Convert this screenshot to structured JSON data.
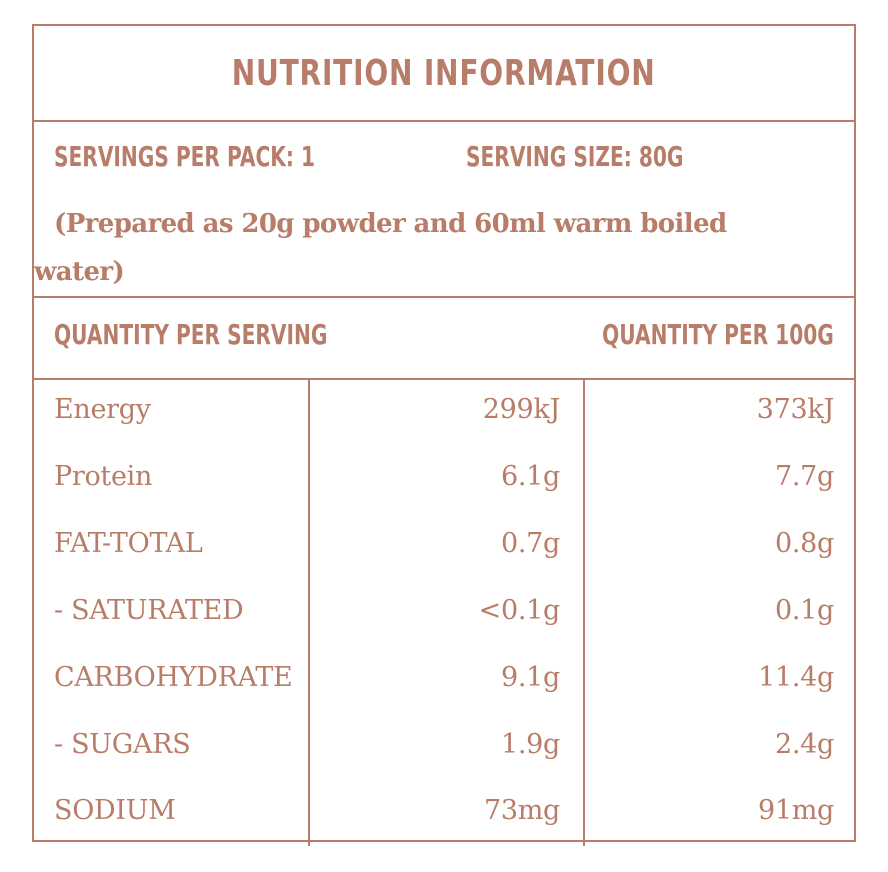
{
  "title": "NUTRITION INFORMATION",
  "servings": {
    "per_pack": "SERVINGS PER PACK: 1",
    "serving_size": "SERVING SIZE: 80G",
    "note": "(Prepared as 20g powder and 60ml warm boiled water)"
  },
  "headers": {
    "per_serving": "QUANTITY PER SERVING",
    "per_100g": "QUANTITY PER 100G"
  },
  "colors": {
    "accent": "#b87d69"
  },
  "rows": [
    {
      "name": "Energy",
      "serving": "299kJ",
      "per100": "373kJ"
    },
    {
      "name": "Protein",
      "serving": "6.1g",
      "per100": "7.7g"
    },
    {
      "name": "FAT-TOTAL",
      "serving": "0.7g",
      "per100": "0.8g"
    },
    {
      "name": "- SATURATED",
      "serving": "<0.1g",
      "per100": "0.1g"
    },
    {
      "name": "CARBOHYDRATE",
      "serving": "9.1g",
      "per100": "11.4g"
    },
    {
      "name": "- SUGARS",
      "serving": "1.9g",
      "per100": "2.4g"
    },
    {
      "name": "SODIUM",
      "serving": "73mg",
      "per100": "91mg"
    }
  ]
}
